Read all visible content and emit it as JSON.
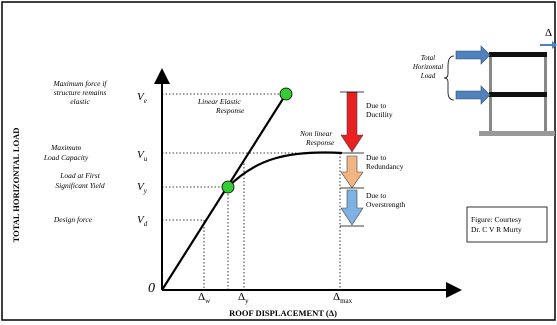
{
  "axes": {
    "y_title": "TOTAL HORIZONTAL LOAD",
    "x_title": "ROOF DISPLACEMENT (Δ)",
    "origin": "0"
  },
  "force_levels": [
    {
      "label_lines": [
        "Maximum force if",
        "structure remains",
        "elastic"
      ],
      "symbol": "V",
      "sub": "e"
    },
    {
      "label_lines": [
        "Maximum",
        "Load Capacity"
      ],
      "symbol": "V",
      "sub": "u"
    },
    {
      "label_lines": [
        "Load at First",
        "Significant Yield"
      ],
      "symbol": "V",
      "sub": "y"
    },
    {
      "label_lines": [
        "Design force"
      ],
      "symbol": "V",
      "sub": "d"
    }
  ],
  "displacements": [
    {
      "symbol": "Δ",
      "sub": "w"
    },
    {
      "symbol": "Δ",
      "sub": "y"
    },
    {
      "symbol": "Δ",
      "sub": "max"
    }
  ],
  "responses": {
    "elastic_lines": [
      "Linear Elastic",
      "Response"
    ],
    "nonlinear_lines": [
      "Non linear",
      "Response"
    ]
  },
  "reductions": [
    {
      "lines": [
        "Due to",
        "Ductility"
      ],
      "color": "#e8201f"
    },
    {
      "lines": [
        "Due to",
        "Redundancy"
      ],
      "color": "#f2b483"
    },
    {
      "lines": [
        "Due to",
        "Overstrength"
      ],
      "color": "#7eb2e3"
    }
  ],
  "building": {
    "label_lines": [
      "Total",
      "Horizontal",
      "Load"
    ],
    "delta": "Δ",
    "arrow_color": "#4f81bd"
  },
  "credit": {
    "lines": [
      "Figure: Courtesy",
      "Dr. C V R Murty"
    ]
  },
  "colors": {
    "point": "#33cc33",
    "line": "#000000"
  }
}
